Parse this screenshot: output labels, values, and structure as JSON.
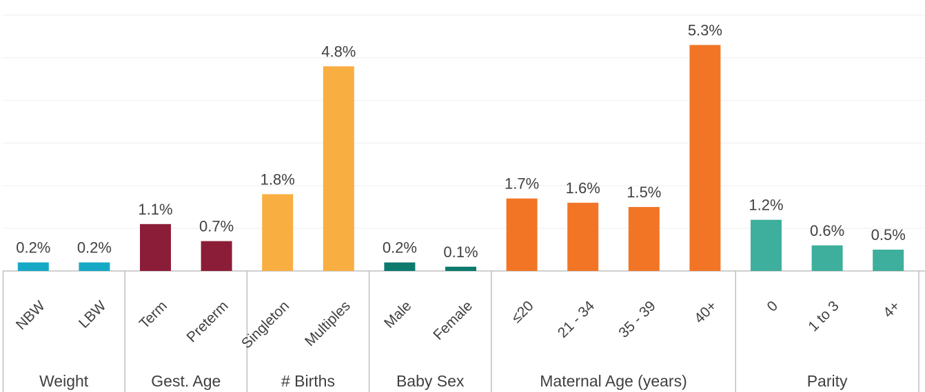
{
  "chart_data": {
    "type": "bar",
    "ylim": [
      0,
      6
    ],
    "grid": true,
    "groups": [
      {
        "name": "Weight",
        "color": "#16a9c5",
        "bars": [
          {
            "category": "NBW",
            "value": 0.2,
            "label": "0.2%"
          },
          {
            "category": "LBW",
            "value": 0.2,
            "label": "0.2%"
          }
        ]
      },
      {
        "name": "Gest. Age",
        "color": "#8c1d38",
        "bars": [
          {
            "category": "Term",
            "value": 1.1,
            "label": "1.1%"
          },
          {
            "category": "Preterm",
            "value": 0.7,
            "label": "0.7%"
          }
        ]
      },
      {
        "name": "# Births",
        "color": "#f9ae42",
        "bars": [
          {
            "category": "Singleton",
            "value": 1.8,
            "label": "1.8%"
          },
          {
            "category": "Multiples",
            "value": 4.8,
            "label": "4.8%"
          }
        ]
      },
      {
        "name": "Baby Sex",
        "color": "#0d7a6c",
        "bars": [
          {
            "category": "Male",
            "value": 0.2,
            "label": "0.2%"
          },
          {
            "category": "Female",
            "value": 0.1,
            "label": "0.1%"
          }
        ]
      },
      {
        "name": "Maternal Age (years)",
        "color": "#f27526",
        "bars": [
          {
            "category": "≤20",
            "value": 1.7,
            "label": "1.7%"
          },
          {
            "category": "21 - 34",
            "value": 1.6,
            "label": "1.6%"
          },
          {
            "category": "35 - 39",
            "value": 1.5,
            "label": "1.5%"
          },
          {
            "category": "40+",
            "value": 5.3,
            "label": "5.3%"
          }
        ]
      },
      {
        "name": "Parity",
        "color": "#3daf9c",
        "bars": [
          {
            "category": "0",
            "value": 1.2,
            "label": "1.2%"
          },
          {
            "category": "1 to 3",
            "value": 0.6,
            "label": "0.6%"
          },
          {
            "category": "4+",
            "value": 0.5,
            "label": "0.5%"
          }
        ]
      }
    ]
  }
}
